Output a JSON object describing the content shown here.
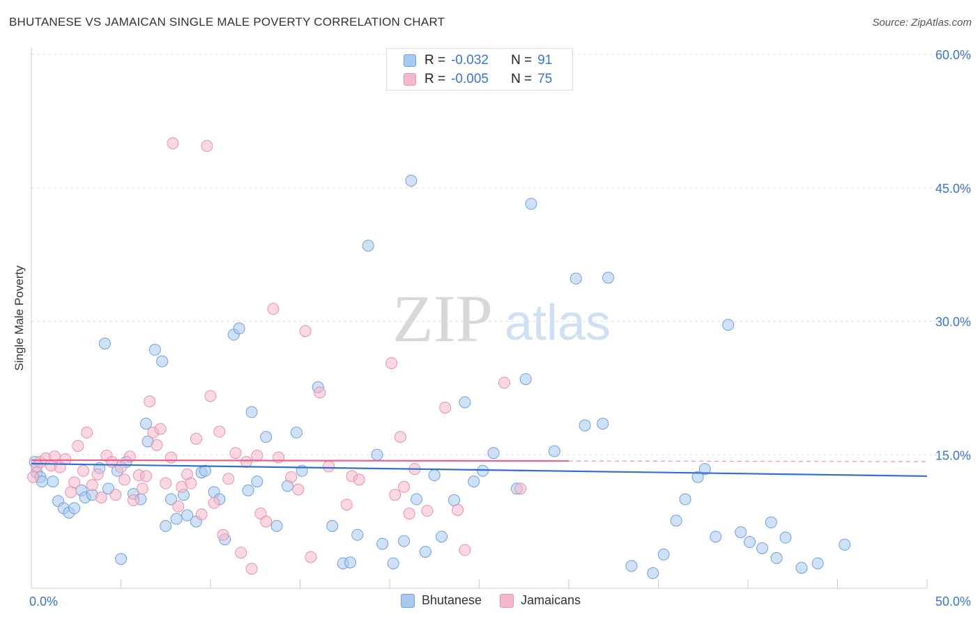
{
  "header": {
    "title": "BHUTANESE VS JAMAICAN SINGLE MALE POVERTY CORRELATION CHART",
    "source": "Source: ZipAtlas.com"
  },
  "watermark": {
    "zip": "ZIP",
    "atlas": "atlas"
  },
  "stats": [
    {
      "r_label": "R =",
      "r_value": "-0.032",
      "n_label": "N =",
      "n_value": "91",
      "color": "#a8c8f0"
    },
    {
      "r_label": "R =",
      "r_value": "-0.005",
      "n_label": "N =",
      "n_value": "75",
      "color": "#f5b8cc"
    }
  ],
  "legend": [
    {
      "label": "Bhutanese",
      "color": "#a8c8f0"
    },
    {
      "label": "Jamaicans",
      "color": "#f5b8cc"
    }
  ],
  "colors": {
    "blue_fill": "#a8c8f0",
    "blue_stroke": "#6f9fdc",
    "blue_line": "#2f6fcf",
    "pink_fill": "#f5b8cc",
    "pink_stroke": "#ea8fae",
    "pink_line": "#e8608c",
    "grid": "#dddddd",
    "axis_text": "#3b74c9"
  },
  "chart_data": {
    "type": "scatter",
    "title": "BHUTANESE VS JAMAICAN SINGLE MALE POVERTY CORRELATION CHART",
    "xlabel": "",
    "ylabel": "Single Male Poverty",
    "xlim": [
      0,
      50
    ],
    "ylim": [
      0,
      60
    ],
    "x_tick_labels": [
      {
        "value": 0,
        "label": "0.0%"
      },
      {
        "value": 50,
        "label": "50.0%"
      }
    ],
    "y_tick_labels": [
      {
        "value": 15,
        "label": "15.0%"
      },
      {
        "value": 30,
        "label": "30.0%"
      },
      {
        "value": 45,
        "label": "45.0%"
      },
      {
        "value": 60,
        "label": "60.0%"
      }
    ],
    "grid": true,
    "legend_position": "bottom",
    "series": [
      {
        "name": "Bhutanese",
        "trend": {
          "x": [
            0,
            50
          ],
          "y": [
            14.0,
            12.6
          ]
        },
        "points": [
          [
            0.2,
            14.2
          ],
          [
            0.3,
            13.0
          ],
          [
            0.5,
            12.5
          ],
          [
            0.6,
            12.0
          ],
          [
            1.2,
            12.0
          ],
          [
            1.5,
            9.8
          ],
          [
            1.8,
            9.0
          ],
          [
            2.1,
            8.5
          ],
          [
            2.4,
            9.0
          ],
          [
            2.8,
            11.0
          ],
          [
            3.0,
            10.2
          ],
          [
            3.4,
            10.5
          ],
          [
            3.8,
            13.5
          ],
          [
            4.1,
            27.5
          ],
          [
            4.3,
            11.2
          ],
          [
            4.8,
            13.2
          ],
          [
            5.0,
            3.3
          ],
          [
            5.3,
            14.2
          ],
          [
            5.7,
            10.6
          ],
          [
            6.1,
            10.0
          ],
          [
            6.4,
            18.5
          ],
          [
            6.5,
            16.5
          ],
          [
            6.9,
            26.8
          ],
          [
            7.3,
            25.5
          ],
          [
            7.5,
            7.0
          ],
          [
            7.8,
            10.0
          ],
          [
            8.1,
            7.8
          ],
          [
            8.5,
            10.5
          ],
          [
            8.7,
            8.2
          ],
          [
            9.2,
            7.5
          ],
          [
            9.5,
            13.0
          ],
          [
            9.7,
            13.2
          ],
          [
            10.2,
            10.8
          ],
          [
            10.5,
            10.0
          ],
          [
            10.8,
            5.5
          ],
          [
            11.3,
            28.5
          ],
          [
            11.6,
            29.2
          ],
          [
            12.1,
            11.0
          ],
          [
            12.3,
            19.8
          ],
          [
            12.6,
            12.0
          ],
          [
            13.1,
            17.0
          ],
          [
            13.7,
            7.0
          ],
          [
            14.3,
            11.5
          ],
          [
            14.8,
            17.5
          ],
          [
            15.1,
            13.2
          ],
          [
            16.0,
            22.6
          ],
          [
            16.8,
            7.0
          ],
          [
            17.4,
            2.8
          ],
          [
            17.8,
            2.9
          ],
          [
            18.2,
            6.0
          ],
          [
            18.8,
            38.5
          ],
          [
            19.3,
            15.0
          ],
          [
            19.6,
            5.0
          ],
          [
            20.2,
            2.8
          ],
          [
            20.8,
            5.3
          ],
          [
            21.2,
            45.8
          ],
          [
            21.5,
            10.0
          ],
          [
            22.0,
            4.1
          ],
          [
            22.5,
            12.7
          ],
          [
            22.9,
            5.8
          ],
          [
            23.6,
            9.9
          ],
          [
            24.2,
            20.9
          ],
          [
            24.7,
            12.0
          ],
          [
            25.2,
            13.2
          ],
          [
            25.8,
            15.2
          ],
          [
            27.1,
            11.2
          ],
          [
            27.6,
            23.5
          ],
          [
            27.9,
            43.2
          ],
          [
            29.2,
            15.4
          ],
          [
            30.4,
            34.8
          ],
          [
            30.9,
            18.3
          ],
          [
            31.9,
            18.5
          ],
          [
            32.2,
            34.9
          ],
          [
            33.5,
            2.5
          ],
          [
            34.7,
            1.7
          ],
          [
            35.3,
            3.8
          ],
          [
            36.0,
            7.6
          ],
          [
            36.5,
            10.0
          ],
          [
            37.2,
            12.5
          ],
          [
            37.6,
            13.4
          ],
          [
            38.2,
            5.8
          ],
          [
            38.9,
            29.6
          ],
          [
            39.6,
            6.3
          ],
          [
            40.1,
            5.2
          ],
          [
            40.8,
            4.5
          ],
          [
            41.3,
            7.4
          ],
          [
            41.6,
            3.4
          ],
          [
            42.1,
            5.7
          ],
          [
            43.0,
            2.3
          ],
          [
            43.9,
            2.8
          ],
          [
            45.4,
            4.9
          ]
        ]
      },
      {
        "name": "Jamaicans",
        "trend": {
          "x": [
            0,
            30
          ],
          "y": [
            14.4,
            14.3
          ]
        },
        "points": [
          [
            0.1,
            12.5
          ],
          [
            0.3,
            13.7
          ],
          [
            0.5,
            14.2
          ],
          [
            0.8,
            14.6
          ],
          [
            1.1,
            13.8
          ],
          [
            1.3,
            14.8
          ],
          [
            1.6,
            13.6
          ],
          [
            1.9,
            14.5
          ],
          [
            2.2,
            10.8
          ],
          [
            2.4,
            11.9
          ],
          [
            2.6,
            16.0
          ],
          [
            2.9,
            13.2
          ],
          [
            3.1,
            17.5
          ],
          [
            3.4,
            11.6
          ],
          [
            3.7,
            12.8
          ],
          [
            3.9,
            10.2
          ],
          [
            4.2,
            14.9
          ],
          [
            4.5,
            14.2
          ],
          [
            4.7,
            10.5
          ],
          [
            5.0,
            13.6
          ],
          [
            5.2,
            12.2
          ],
          [
            5.5,
            14.8
          ],
          [
            5.7,
            9.9
          ],
          [
            6.0,
            12.7
          ],
          [
            6.2,
            11.2
          ],
          [
            6.4,
            12.6
          ],
          [
            6.6,
            21.0
          ],
          [
            6.8,
            17.5
          ],
          [
            7.0,
            16.1
          ],
          [
            7.2,
            17.9
          ],
          [
            7.5,
            11.8
          ],
          [
            7.8,
            14.7
          ],
          [
            7.9,
            50.0
          ],
          [
            8.2,
            9.2
          ],
          [
            8.4,
            11.4
          ],
          [
            8.7,
            12.8
          ],
          [
            8.9,
            11.8
          ],
          [
            9.2,
            16.8
          ],
          [
            9.5,
            8.3
          ],
          [
            9.8,
            49.7
          ],
          [
            10.0,
            21.6
          ],
          [
            10.2,
            9.6
          ],
          [
            10.5,
            17.6
          ],
          [
            10.7,
            6.0
          ],
          [
            11.0,
            12.3
          ],
          [
            11.4,
            15.2
          ],
          [
            11.7,
            4.0
          ],
          [
            12.0,
            14.2
          ],
          [
            12.3,
            2.2
          ],
          [
            12.6,
            14.9
          ],
          [
            12.8,
            8.4
          ],
          [
            13.1,
            7.5
          ],
          [
            13.5,
            31.4
          ],
          [
            13.8,
            14.7
          ],
          [
            14.5,
            12.5
          ],
          [
            14.9,
            11.1
          ],
          [
            15.3,
            28.9
          ],
          [
            15.6,
            3.5
          ],
          [
            16.1,
            22.0
          ],
          [
            16.6,
            13.7
          ],
          [
            17.6,
            9.4
          ],
          [
            17.9,
            12.6
          ],
          [
            18.3,
            12.2
          ],
          [
            20.1,
            25.3
          ],
          [
            20.3,
            10.5
          ],
          [
            20.6,
            17.0
          ],
          [
            20.8,
            11.4
          ],
          [
            21.1,
            8.4
          ],
          [
            21.4,
            13.4
          ],
          [
            22.1,
            8.7
          ],
          [
            23.1,
            20.3
          ],
          [
            23.8,
            8.8
          ],
          [
            24.2,
            4.3
          ],
          [
            26.4,
            23.1
          ],
          [
            27.3,
            11.2
          ]
        ]
      }
    ]
  }
}
